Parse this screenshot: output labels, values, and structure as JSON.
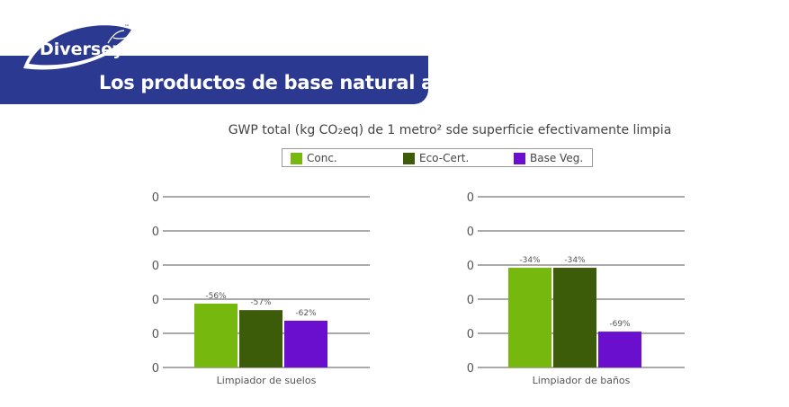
{
  "header": {
    "title": "Los productos de base natural ayudan",
    "logo_text": "Diversey",
    "logo_tm": "™"
  },
  "chart_data": {
    "type": "bar",
    "title": "GWP total (kg CO₂eq) de 1 metro² sde superficie efectivamente limpia",
    "legend": {
      "placement": "top",
      "entries": [
        "Conc.",
        "Eco-Cert.",
        "Base Veg."
      ]
    },
    "colors": [
      "#76b80e",
      "#3c5c0a",
      "#6a0fce"
    ],
    "grid": true,
    "yticks": [
      "0",
      "0",
      "0",
      "0",
      "0",
      "0"
    ],
    "ylim": [
      0,
      5
    ],
    "panels": [
      {
        "category": "Limpiador de suelos",
        "values": [
          1.87,
          1.68,
          1.37
        ],
        "labels": [
          "-56%",
          "-57%",
          "-62%"
        ]
      },
      {
        "category": "Limpiador de baños",
        "values": [
          2.92,
          2.92,
          1.05
        ],
        "labels": [
          "-34%",
          "-34%",
          "-69%"
        ]
      }
    ]
  }
}
